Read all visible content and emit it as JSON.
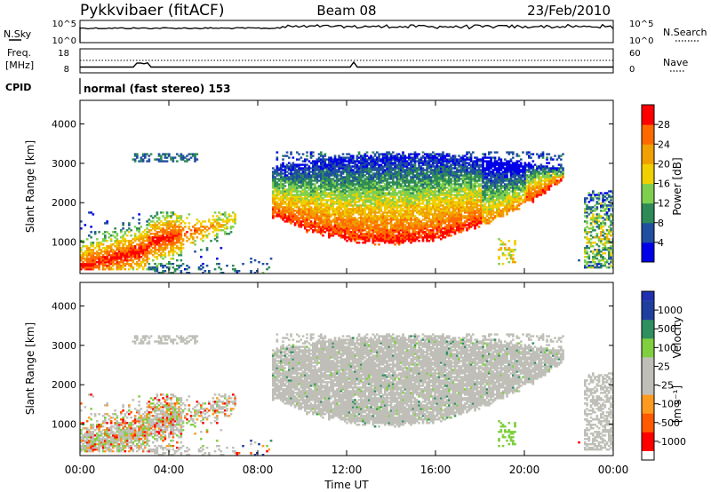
{
  "header": {
    "station": "Pykkvibaer (fitACF)",
    "beam": "Beam 08",
    "date": "23/Feb/2010"
  },
  "strips": {
    "nsky_label": "N.Sky",
    "nsky_ticks": [
      "10^5",
      "10^0"
    ],
    "nsearch_label": "N.Search",
    "nsearch_ticks": [
      "10^5",
      "10^0"
    ],
    "freq_label": "Freq.",
    "freq_unit": "[MHz]",
    "freq_ticks": [
      "18",
      "8"
    ],
    "nave_label": "Nave",
    "nave_ticks": [
      "60",
      "0"
    ],
    "cpid_label": "CPID",
    "cpid_text": "normal (fast stereo) 153"
  },
  "panels": {
    "ylabel": "Slant Range [km]",
    "power_label": "Power [dB]",
    "velocity_label": "Velocity",
    "velocity_unit": "[m s⁻¹]"
  },
  "colors": {
    "power_scale": [
      "#0000e8",
      "#1f4f9f",
      "#2e8b57",
      "#7fcf4f",
      "#f0d000",
      "#f0a000",
      "#ff6a00",
      "#ff0000"
    ],
    "velocity_scale": [
      "#ff0000",
      "#ff5a00",
      "#ff9a20",
      "#bfbfb8",
      "#bfbfb8",
      "#7fcf3f",
      "#2f8f5f",
      "#1f3f9f"
    ]
  },
  "chart_data": [
    {
      "type": "heatmap",
      "title": "Power",
      "xlabel": "Time UT",
      "ylabel": "Slant Range [km]",
      "xlim": [
        "00:00",
        "24:00"
      ],
      "ylim": [
        200,
        4600
      ],
      "xticks": [
        "00:00",
        "04:00",
        "08:00",
        "12:00",
        "16:00",
        "20:00",
        "00:00"
      ],
      "yticks": [
        "1000",
        "2000",
        "3000",
        "4000"
      ],
      "colorbar_label": "Power [dB]",
      "colorbar_ticks": [
        "4",
        "8",
        "12",
        "16",
        "20",
        "24",
        "28"
      ],
      "colorbar_range": [
        0,
        32
      ],
      "echo_regions": [
        {
          "t_start": 0.0,
          "t_end": 7.0,
          "range_min": 250,
          "range_max": 1700,
          "peak_power_db": 30
        },
        {
          "t_start": 2.3,
          "t_end": 5.3,
          "range_min": 3000,
          "range_max": 3250,
          "peak_power_db": 8
        },
        {
          "t_start": 8.7,
          "t_end": 21.7,
          "range_min": 900,
          "range_max": 3300,
          "peak_power_db": 30
        },
        {
          "t_start": 22.6,
          "t_end": 24.0,
          "range_min": 300,
          "range_max": 2300,
          "peak_power_db": 22
        }
      ]
    },
    {
      "type": "heatmap",
      "title": "Velocity",
      "xlabel": "Time UT",
      "ylabel": "Slant Range [km]",
      "xlim": [
        "00:00",
        "24:00"
      ],
      "ylim": [
        200,
        4600
      ],
      "xticks": [
        "00:00",
        "04:00",
        "08:00",
        "12:00",
        "16:00",
        "20:00",
        "00:00"
      ],
      "yticks": [
        "1000",
        "2000",
        "3000",
        "4000"
      ],
      "colorbar_label": "Velocity [m s⁻¹]",
      "colorbar_ticks": [
        "-1000",
        "-500",
        "-100",
        "-25",
        "25",
        "100",
        "500",
        "1000"
      ],
      "echo_regions": [
        {
          "t_start": 0.0,
          "t_end": 6.5,
          "range_min": 250,
          "range_max": 1800,
          "dominant_velocity": "mixed / negative"
        },
        {
          "t_start": 8.7,
          "t_end": 21.7,
          "range_min": 900,
          "range_max": 3300,
          "dominant_velocity": "-25 to 25"
        },
        {
          "t_start": 22.6,
          "t_end": 24.0,
          "range_min": 300,
          "range_max": 2300,
          "dominant_velocity": "-25 to 25"
        }
      ]
    }
  ],
  "time_axis_label": "Time UT"
}
